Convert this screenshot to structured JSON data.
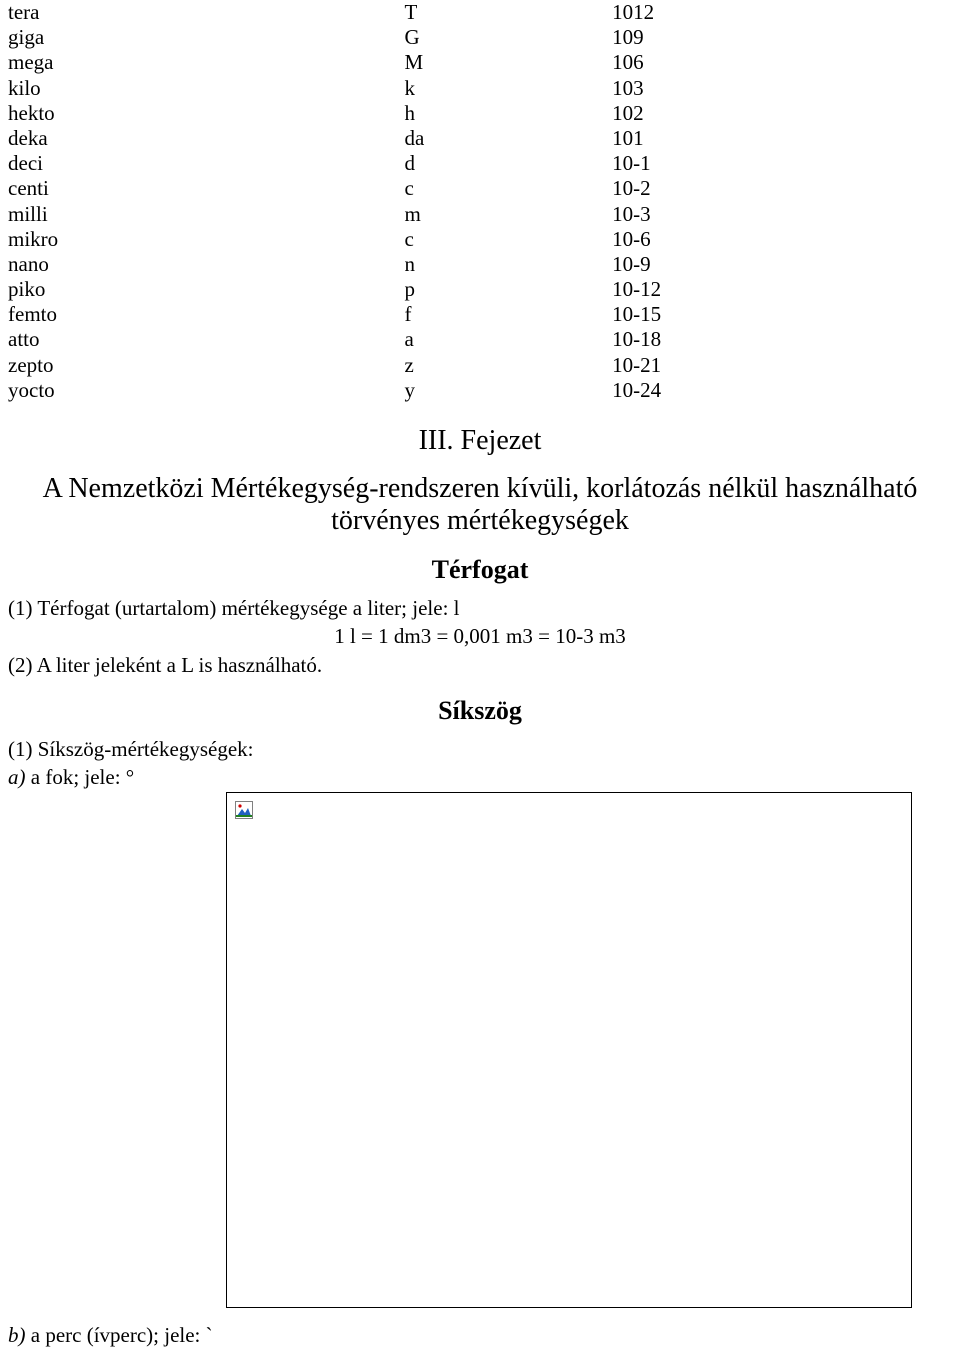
{
  "prefixes": {
    "rows": [
      {
        "name": "tera",
        "sym": "T",
        "val": "1012"
      },
      {
        "name": "giga",
        "sym": "G",
        "val": "109"
      },
      {
        "name": "mega",
        "sym": "M",
        "val": "106"
      },
      {
        "name": "kilo",
        "sym": "k",
        "val": "103"
      },
      {
        "name": "hekto",
        "sym": "h",
        "val": "102"
      },
      {
        "name": "deka",
        "sym": "da",
        "val": "101"
      },
      {
        "name": "deci",
        "sym": "d",
        "val": "10-1"
      },
      {
        "name": "centi",
        "sym": "c",
        "val": "10-2"
      },
      {
        "name": "milli",
        "sym": "m",
        "val": "10-3"
      },
      {
        "name": "mikro",
        "sym": "c",
        "val": "10-6"
      },
      {
        "name": "nano",
        "sym": "n",
        "val": "10-9"
      },
      {
        "name": "piko",
        "sym": "p",
        "val": "10-12"
      },
      {
        "name": "femto",
        "sym": "f",
        "val": "10-15"
      },
      {
        "name": "atto",
        "sym": "a",
        "val": "10-18"
      },
      {
        "name": "zepto",
        "sym": "z",
        "val": "10-21"
      },
      {
        "name": "yocto",
        "sym": "y",
        "val": "10-24"
      }
    ]
  },
  "chapter": {
    "title": "III. Fejezet"
  },
  "section": {
    "line1": "A Nemzetközi Mértékegység-rendszeren kívüli, korlátozás nélkül használható",
    "line2": "törvényes mértékegységek"
  },
  "volume": {
    "heading": "Térfogat",
    "p1": "(1) Térfogat (urtartalom) mértékegysége a liter; jele: l",
    "formula": "1 l = 1 dm3 = 0,001 m3 = 10-3 m3",
    "p2": "(2) A liter jeleként a L is használható."
  },
  "angle": {
    "heading": "Síkszög",
    "p1": "(1) Síkszög-mértékegységek:",
    "a_prefix": "a)",
    "a_text": " a fok; jele: °",
    "b_prefix": "b)",
    "b_text": " a perc (ívperc); jele: `"
  }
}
